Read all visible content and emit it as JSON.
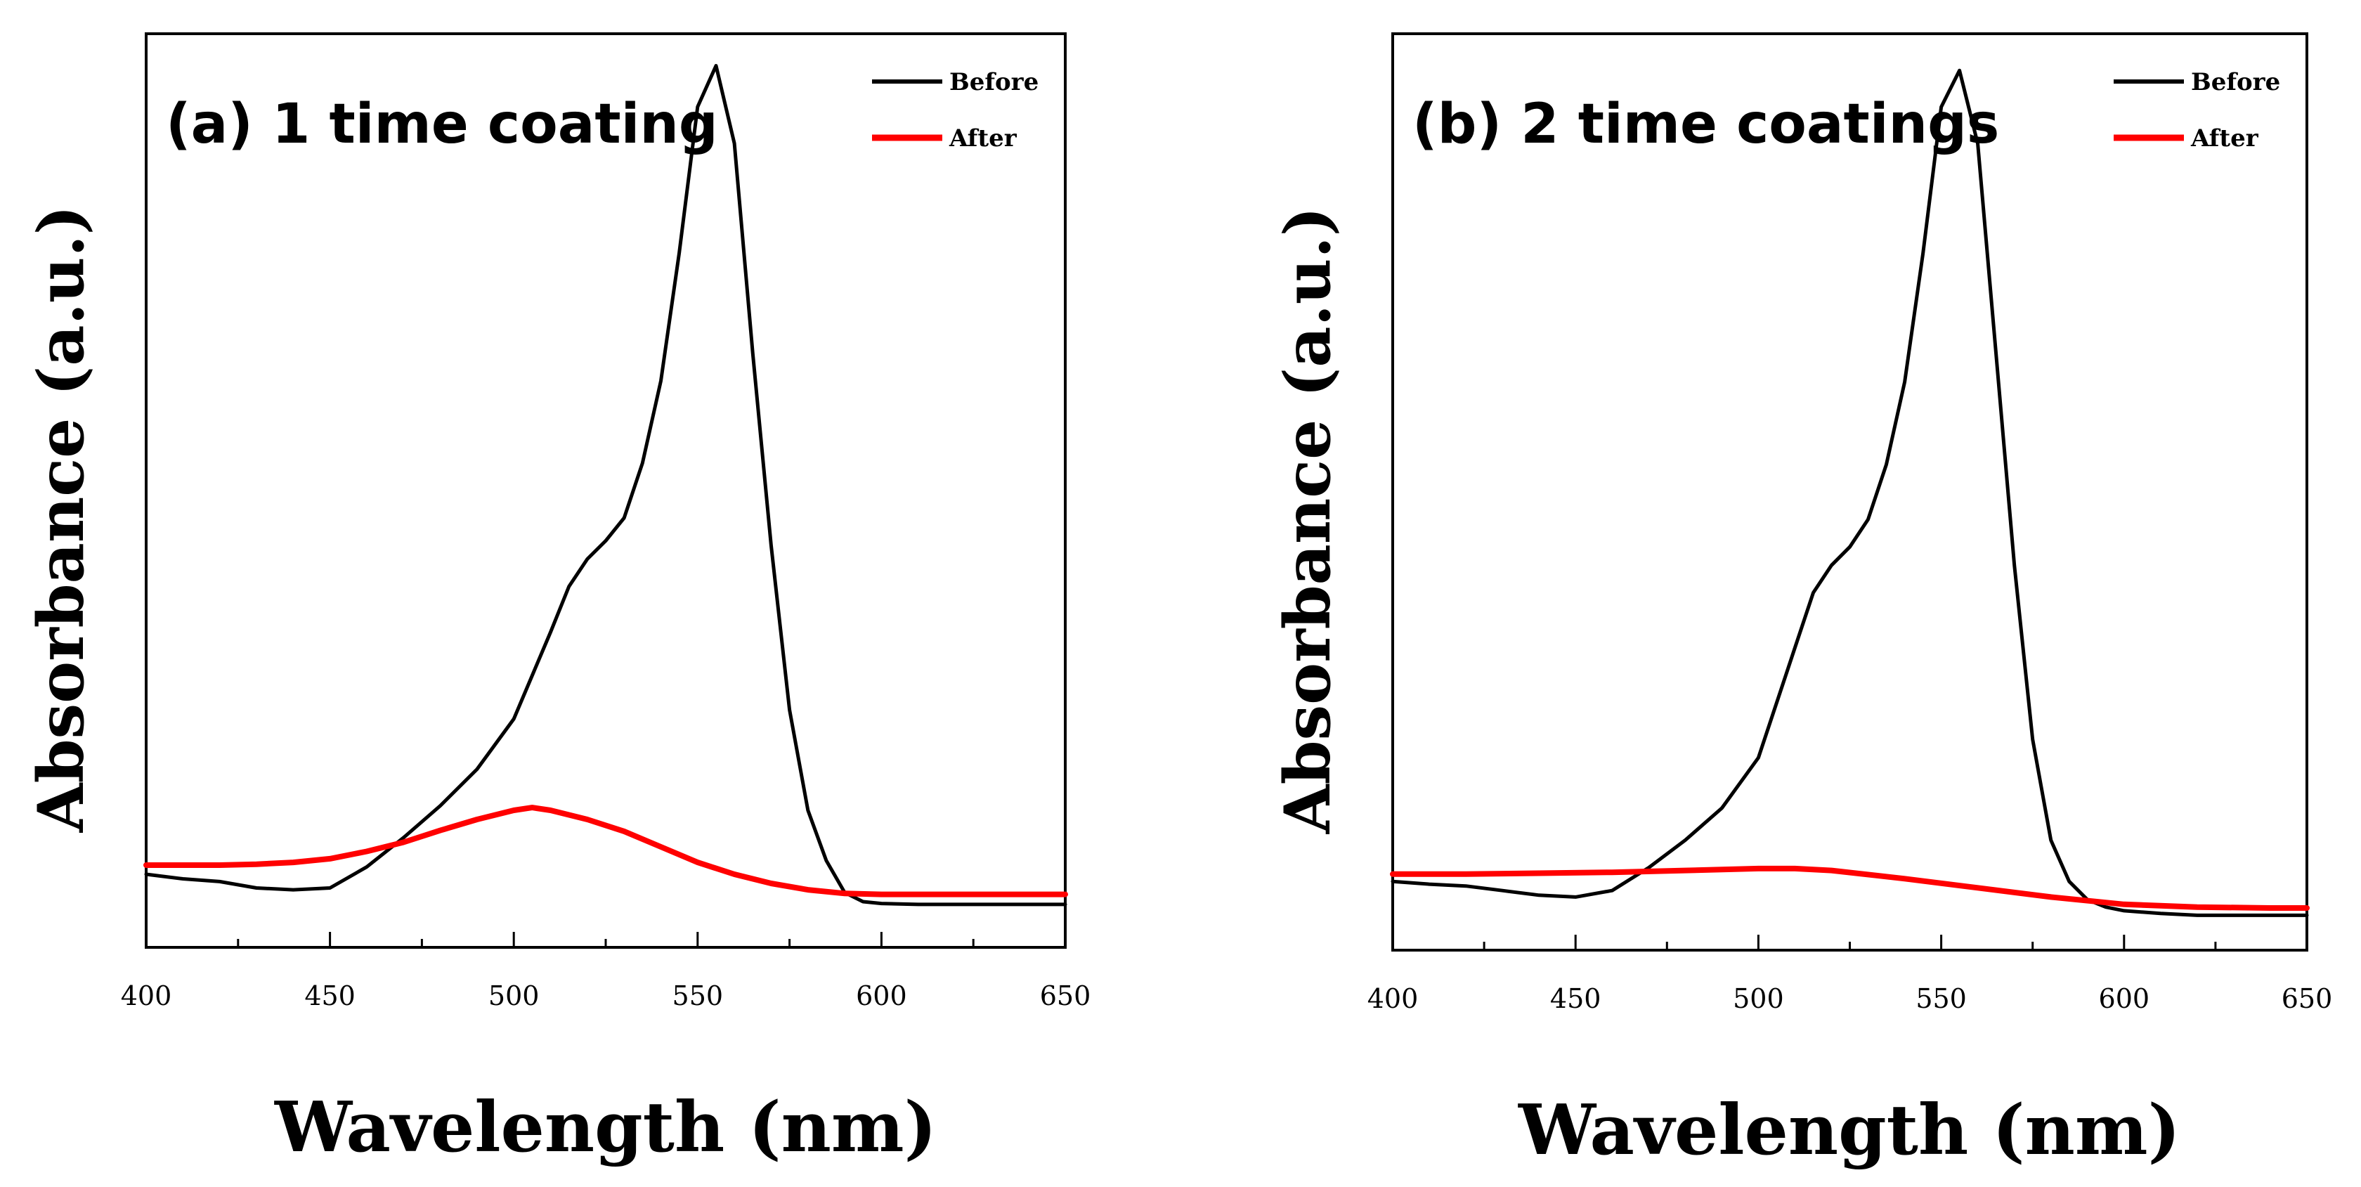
{
  "chart_data": [
    {
      "type": "line",
      "title": "(a) 1 time coating",
      "xlabel": "Wavelength (nm)",
      "ylabel": "Absorbance (a.u.)",
      "xlim": [
        400,
        650
      ],
      "ylim": [
        0,
        1.0
      ],
      "xticks": [
        400,
        450,
        500,
        550,
        600,
        650
      ],
      "xtick_labels": [
        "400",
        "450",
        "500",
        "550",
        "600",
        "650"
      ],
      "show_yticks": false,
      "grid": false,
      "legend_position": "top-right",
      "series": [
        {
          "name": "Before",
          "color": "#000000",
          "x": [
            400,
            410,
            420,
            430,
            440,
            450,
            460,
            470,
            480,
            490,
            500,
            510,
            515,
            520,
            525,
            530,
            535,
            540,
            545,
            550,
            555,
            560,
            565,
            570,
            575,
            580,
            585,
            590,
            595,
            600,
            610,
            620,
            630,
            640,
            650
          ],
          "y": [
            0.08,
            0.075,
            0.072,
            0.065,
            0.063,
            0.065,
            0.088,
            0.12,
            0.155,
            0.195,
            0.25,
            0.345,
            0.395,
            0.425,
            0.445,
            0.47,
            0.53,
            0.62,
            0.76,
            0.92,
            0.965,
            0.88,
            0.65,
            0.44,
            0.26,
            0.15,
            0.095,
            0.06,
            0.05,
            0.048,
            0.047,
            0.047,
            0.047,
            0.047,
            0.047
          ]
        },
        {
          "name": "After",
          "color": "#ff0000",
          "x": [
            400,
            410,
            420,
            430,
            440,
            450,
            460,
            470,
            480,
            490,
            500,
            505,
            510,
            520,
            530,
            540,
            550,
            560,
            570,
            580,
            590,
            600,
            610,
            620,
            630,
            640,
            650
          ],
          "y": [
            0.09,
            0.09,
            0.09,
            0.091,
            0.093,
            0.097,
            0.105,
            0.115,
            0.128,
            0.14,
            0.15,
            0.153,
            0.15,
            0.14,
            0.127,
            0.11,
            0.093,
            0.08,
            0.07,
            0.063,
            0.059,
            0.058,
            0.058,
            0.058,
            0.058,
            0.058,
            0.058
          ]
        }
      ]
    },
    {
      "type": "line",
      "title": "(b) 2 time coatings",
      "xlabel": "Wavelength (nm)",
      "ylabel": "Absorbance (a.u.)",
      "xlim": [
        400,
        650
      ],
      "ylim": [
        0,
        1.0
      ],
      "xticks": [
        400,
        450,
        500,
        550,
        600,
        650
      ],
      "xtick_labels": [
        "400",
        "450",
        "500",
        "550",
        "600",
        "650"
      ],
      "show_yticks": false,
      "grid": false,
      "legend_position": "top-right",
      "series": [
        {
          "name": "Before",
          "color": "#000000",
          "x": [
            400,
            410,
            420,
            430,
            440,
            450,
            460,
            470,
            480,
            490,
            500,
            510,
            515,
            520,
            525,
            530,
            535,
            540,
            545,
            550,
            555,
            560,
            565,
            570,
            575,
            580,
            585,
            590,
            595,
            600,
            610,
            620,
            630,
            640,
            650
          ],
          "y": [
            0.075,
            0.072,
            0.07,
            0.065,
            0.06,
            0.058,
            0.065,
            0.09,
            0.12,
            0.155,
            0.21,
            0.33,
            0.39,
            0.42,
            0.44,
            0.47,
            0.53,
            0.62,
            0.76,
            0.92,
            0.96,
            0.88,
            0.65,
            0.42,
            0.23,
            0.12,
            0.075,
            0.055,
            0.047,
            0.043,
            0.04,
            0.038,
            0.038,
            0.038,
            0.038
          ]
        },
        {
          "name": "After",
          "color": "#ff0000",
          "x": [
            400,
            420,
            440,
            460,
            480,
            500,
            510,
            520,
            540,
            560,
            580,
            600,
            620,
            640,
            650
          ],
          "y": [
            0.083,
            0.083,
            0.084,
            0.085,
            0.087,
            0.089,
            0.089,
            0.087,
            0.078,
            0.068,
            0.058,
            0.05,
            0.047,
            0.046,
            0.046
          ]
        }
      ]
    }
  ]
}
